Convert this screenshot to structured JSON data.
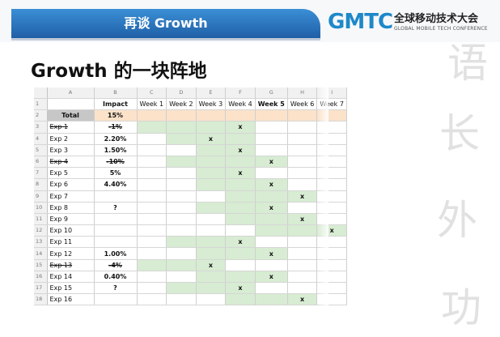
{
  "header": {
    "title": "再谈 Growth"
  },
  "brand": {
    "logo_text": "GMTC",
    "name_cn": "全球移动技术大会",
    "name_en": "GLOBAL MOBILE TECH CONFERENCE",
    "accent_color": "#1e88c9",
    "band_color": "#2a74c0"
  },
  "slide": {
    "heading": "Growth 的一块阵地"
  },
  "watermark": {
    "chars": [
      "语",
      "长",
      "外",
      "功"
    ]
  },
  "sheet": {
    "column_letters": [
      "A",
      "B",
      "C",
      "D",
      "E",
      "F",
      "G",
      "H",
      "I"
    ],
    "header_row": {
      "row_num": "1",
      "impact": "Impact",
      "weeks": [
        "Week 1",
        "Week 2",
        "Week 3",
        "Week 4",
        "Week 5",
        "Week 6",
        "Week 7"
      ]
    },
    "total_row": {
      "row_num": "2",
      "label": "Total",
      "impact": "15%"
    },
    "rows": [
      {
        "row_num": "3",
        "label": "Exp 1",
        "impact": "-1%",
        "struck": true,
        "active_from": 1,
        "active_to": 4,
        "mark_week": 4
      },
      {
        "row_num": "4",
        "label": "Exp 2",
        "impact": "2.20%",
        "struck": false,
        "active_from": 2,
        "active_to": 4,
        "mark_week": 3
      },
      {
        "row_num": "5",
        "label": "Exp 3",
        "impact": "1.50%",
        "struck": false,
        "active_from": 3,
        "active_to": 4,
        "mark_week": 4
      },
      {
        "row_num": "6",
        "label": "Exp 4",
        "impact": "-10%",
        "struck": true,
        "active_from": 2,
        "active_to": 5,
        "mark_week": 5
      },
      {
        "row_num": "7",
        "label": "Exp 5",
        "impact": "5%",
        "struck": false,
        "active_from": 3,
        "active_to": 4,
        "mark_week": 4
      },
      {
        "row_num": "8",
        "label": "Exp 6",
        "impact": "4.40%",
        "struck": false,
        "active_from": 3,
        "active_to": 5,
        "mark_week": 5
      },
      {
        "row_num": "9",
        "label": "Exp 7",
        "impact": "",
        "struck": false,
        "active_from": 4,
        "active_to": 6,
        "mark_week": 6
      },
      {
        "row_num": "10",
        "label": "Exp 8",
        "impact": "?",
        "struck": false,
        "active_from": 3,
        "active_to": 5,
        "mark_week": 5
      },
      {
        "row_num": "11",
        "label": "Exp 9",
        "impact": "",
        "struck": false,
        "active_from": 4,
        "active_to": 6,
        "mark_week": 6
      },
      {
        "row_num": "12",
        "label": "Exp 10",
        "impact": "",
        "struck": false,
        "active_from": 5,
        "active_to": 7,
        "mark_week": 7
      },
      {
        "row_num": "13",
        "label": "Exp 11",
        "impact": "",
        "struck": false,
        "active_from": 2,
        "active_to": 4,
        "mark_week": 4
      },
      {
        "row_num": "14",
        "label": "Exp 12",
        "impact": "1.00%",
        "struck": false,
        "active_from": 3,
        "active_to": 5,
        "mark_week": 5
      },
      {
        "row_num": "15",
        "label": "Exp 13",
        "impact": "-4%",
        "struck": true,
        "active_from": 1,
        "active_to": 3,
        "mark_week": 3
      },
      {
        "row_num": "16",
        "label": "Exp 14",
        "impact": "0.40%",
        "struck": false,
        "active_from": 3,
        "active_to": 5,
        "mark_week": 5
      },
      {
        "row_num": "17",
        "label": "Exp 15",
        "impact": "?",
        "struck": false,
        "active_from": 2,
        "active_to": 4,
        "mark_week": 4
      },
      {
        "row_num": "18",
        "label": "Exp 16",
        "impact": "",
        "struck": false,
        "active_from": 4,
        "active_to": 6,
        "mark_week": 6
      }
    ],
    "mark_symbol": "x",
    "colors": {
      "active": "#d7ecd2",
      "total_row": "#fbe2c9",
      "total_label": "#c7c7c7"
    }
  }
}
